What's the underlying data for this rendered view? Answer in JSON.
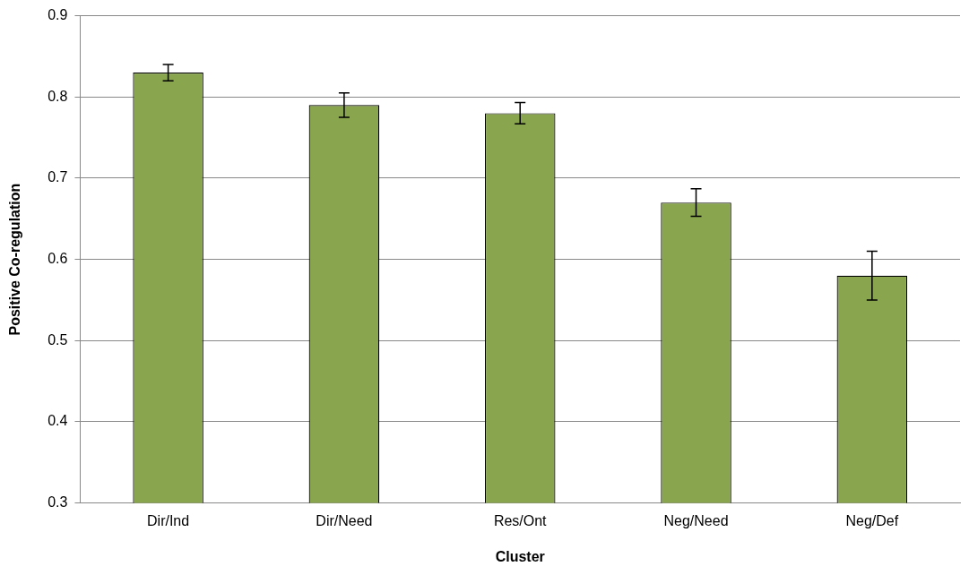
{
  "chart_data": {
    "type": "bar",
    "xlabel": "Cluster",
    "ylabel": "Positive Co-regulation",
    "categories": [
      "Dir/Ind",
      "Dir/Need",
      "Res/Ont",
      "Neg/Need",
      "Neg/Def"
    ],
    "values": [
      0.83,
      0.79,
      0.78,
      0.67,
      0.58
    ],
    "errors": [
      0.01,
      0.015,
      0.013,
      0.017,
      0.03
    ],
    "color": "#89a54e",
    "ylim": [
      0.3,
      0.9
    ],
    "yticks": [
      0.3,
      0.4,
      0.5,
      0.6,
      0.7,
      0.8,
      0.9
    ],
    "grid": "y",
    "legend": false
  }
}
